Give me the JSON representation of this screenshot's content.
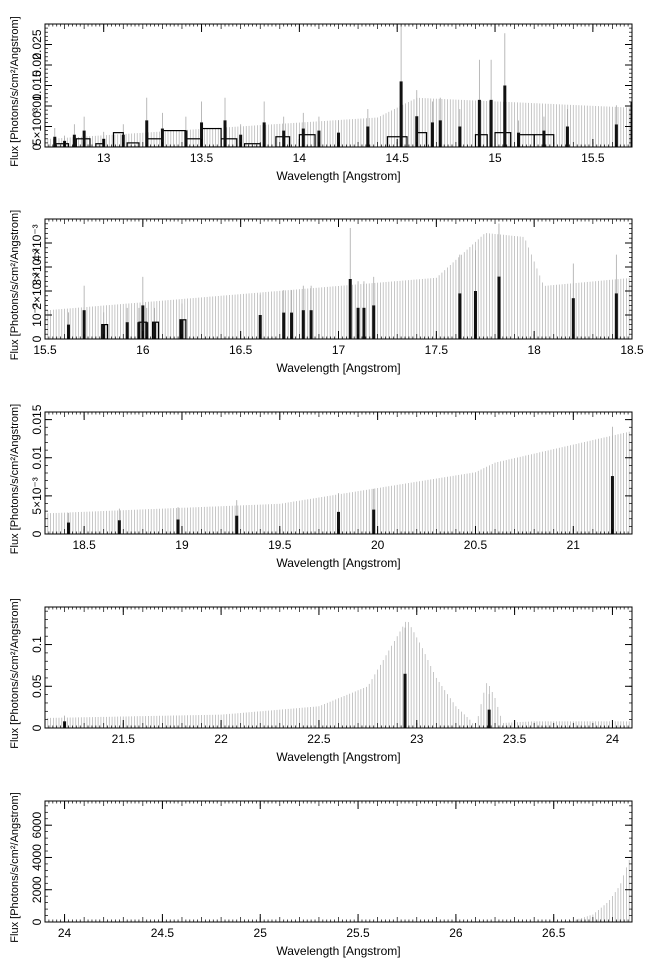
{
  "chart_data": [
    {
      "type": "line",
      "xlabel": "Wavelength [Angstrom]",
      "ylabel": "Flux [Photons/s/cm²/Angstrom]",
      "xlim": [
        12.7,
        15.7
      ],
      "ylim": [
        0,
        0.03
      ],
      "x_ticks": [
        13,
        13.5,
        14,
        14.5,
        15,
        15.5
      ],
      "x_tick_labels": [
        "13",
        "13.5",
        "14",
        "14.5",
        "15",
        "15.5"
      ],
      "y_ticks": [
        0,
        0.005,
        0.01,
        0.015,
        0.02,
        0.025
      ],
      "y_tick_labels": [
        "0",
        "5×10⁻³",
        "0.01",
        "0.015",
        "0.02",
        "0.025"
      ],
      "y_tick_labels_overlap": true,
      "continuum": [
        [
          12.7,
          0.0012
        ],
        [
          14.4,
          0.0045
        ],
        [
          14.6,
          0.0075
        ],
        [
          15.7,
          0.006
        ]
      ],
      "errorbar_scale": 1.6,
      "lines": [
        [
          12.75,
          0.0025
        ],
        [
          12.8,
          0.0015
        ],
        [
          12.85,
          0.003
        ],
        [
          12.9,
          0.004
        ],
        [
          13.0,
          0.002
        ],
        [
          13.1,
          0.003
        ],
        [
          13.22,
          0.0065
        ],
        [
          13.3,
          0.0045
        ],
        [
          13.42,
          0.004
        ],
        [
          13.5,
          0.006
        ],
        [
          13.62,
          0.0065
        ],
        [
          13.7,
          0.003
        ],
        [
          13.82,
          0.006
        ],
        [
          13.92,
          0.004
        ],
        [
          14.02,
          0.0045
        ],
        [
          14.1,
          0.004
        ],
        [
          14.2,
          0.0035
        ],
        [
          14.35,
          0.005
        ],
        [
          14.52,
          0.016
        ],
        [
          14.6,
          0.0075
        ],
        [
          14.68,
          0.006
        ],
        [
          14.72,
          0.0065
        ],
        [
          14.82,
          0.005
        ],
        [
          14.92,
          0.0115
        ],
        [
          14.98,
          0.0115
        ],
        [
          15.05,
          0.015
        ],
        [
          15.12,
          0.0035
        ],
        [
          15.25,
          0.004
        ],
        [
          15.37,
          0.005
        ],
        [
          15.62,
          0.0055
        ],
        [
          15.7,
          0.011
        ]
      ],
      "outline_boxes": [
        [
          12.75,
          12.82,
          0.0008
        ],
        [
          12.86,
          12.93,
          0.002
        ],
        [
          12.96,
          13.0,
          0.0008
        ],
        [
          13.05,
          13.1,
          0.0035
        ],
        [
          13.12,
          13.18,
          0.001
        ],
        [
          13.22,
          13.3,
          0.002
        ],
        [
          13.3,
          13.42,
          0.004
        ],
        [
          13.42,
          13.5,
          0.002
        ],
        [
          13.5,
          13.6,
          0.0045
        ],
        [
          13.6,
          13.68,
          0.002
        ],
        [
          13.72,
          13.8,
          0.0008
        ],
        [
          13.88,
          13.95,
          0.0025
        ],
        [
          14.0,
          14.08,
          0.003
        ],
        [
          14.45,
          14.55,
          0.0025
        ],
        [
          14.6,
          14.65,
          0.0035
        ],
        [
          14.9,
          14.96,
          0.003
        ],
        [
          15.0,
          15.08,
          0.0035
        ],
        [
          15.12,
          15.2,
          0.003
        ],
        [
          15.2,
          15.3,
          0.003
        ]
      ]
    },
    {
      "type": "line",
      "xlabel": "Wavelength [Angstrom]",
      "ylabel": "Flux [Photons/s/cm²/Angstrom]",
      "xlim": [
        15.5,
        18.5
      ],
      "ylim": [
        0,
        0.005
      ],
      "x_ticks": [
        15.5,
        16,
        16.5,
        17,
        17.5,
        18,
        18.5
      ],
      "x_tick_labels": [
        "15.5",
        "16",
        "16.5",
        "17",
        "17.5",
        "18",
        "18.5"
      ],
      "y_ticks": [
        0,
        0.001,
        0.002,
        0.003,
        0.004
      ],
      "y_tick_labels": [
        "0",
        "10⁻³",
        "2×10⁻³",
        "3×10⁻³",
        "4×10⁻³"
      ],
      "y_tick_labels_overlap": true,
      "continuum": [
        [
          15.5,
          0.0007
        ],
        [
          17.5,
          0.0015
        ],
        [
          17.75,
          0.0026
        ],
        [
          17.95,
          0.0025
        ],
        [
          18.05,
          0.0013
        ],
        [
          18.5,
          0.0015
        ]
      ],
      "errorbar_scale": 1.7,
      "lines": [
        [
          15.62,
          0.0006
        ],
        [
          15.7,
          0.0012
        ],
        [
          15.8,
          0.0006
        ],
        [
          15.92,
          0.0007
        ],
        [
          15.98,
          0.0007
        ],
        [
          16.0,
          0.0014
        ],
        [
          16.02,
          0.0007
        ],
        [
          16.06,
          0.0007
        ],
        [
          16.2,
          0.0008
        ],
        [
          16.6,
          0.001
        ],
        [
          16.72,
          0.0011
        ],
        [
          16.76,
          0.0011
        ],
        [
          16.82,
          0.0012
        ],
        [
          16.86,
          0.0012
        ],
        [
          17.06,
          0.0025
        ],
        [
          17.1,
          0.0013
        ],
        [
          17.13,
          0.0013
        ],
        [
          17.18,
          0.0014
        ],
        [
          17.62,
          0.0019
        ],
        [
          17.7,
          0.002
        ],
        [
          17.82,
          0.0026
        ],
        [
          18.2,
          0.0017
        ],
        [
          18.42,
          0.0019
        ]
      ],
      "outline_boxes": [
        [
          15.79,
          15.82,
          0.0006
        ],
        [
          15.98,
          16.02,
          0.0007
        ],
        [
          16.05,
          16.08,
          0.0007
        ],
        [
          16.19,
          16.22,
          0.0008
        ]
      ]
    },
    {
      "type": "line",
      "xlabel": "Wavelength [Angstrom]",
      "ylabel": "Flux [Photons/s/cm²/Angstrom]",
      "xlim": [
        18.3,
        21.3
      ],
      "ylim": [
        0,
        0.016
      ],
      "x_ticks": [
        18.5,
        19,
        19.5,
        20,
        20.5,
        21
      ],
      "x_tick_labels": [
        "18.5",
        "19",
        "19.5",
        "20",
        "20.5",
        "21"
      ],
      "y_ticks": [
        0,
        0.005,
        0.01,
        0.015
      ],
      "y_tick_labels": [
        "0",
        "5×10⁻³",
        "0.01",
        "0.015"
      ],
      "y_tick_labels_overlap": false,
      "continuum": [
        [
          18.3,
          0.0015
        ],
        [
          19.5,
          0.0022
        ],
        [
          20.5,
          0.0045
        ],
        [
          20.6,
          0.0052
        ],
        [
          21.3,
          0.0075
        ]
      ],
      "errorbar_scale": 1.8,
      "lines": [
        [
          18.42,
          0.0015
        ],
        [
          18.68,
          0.0018
        ],
        [
          18.98,
          0.0019
        ],
        [
          19.28,
          0.0024
        ],
        [
          19.8,
          0.0029
        ],
        [
          19.98,
          0.0032
        ],
        [
          21.2,
          0.0076
        ]
      ],
      "outline_boxes": []
    },
    {
      "type": "line",
      "xlabel": "Wavelength [Angstrom]",
      "ylabel": "Flux [Photons/s/cm²/Angstrom]",
      "xlim": [
        21.1,
        24.1
      ],
      "ylim": [
        0,
        0.145
      ],
      "x_ticks": [
        21.5,
        22,
        22.5,
        23,
        23.5,
        24
      ],
      "x_tick_labels": [
        "21.5",
        "22",
        "22.5",
        "23",
        "23.5",
        "24"
      ],
      "y_ticks": [
        0,
        0.05,
        0.1
      ],
      "y_tick_labels": [
        "0",
        "0.05",
        "0.1"
      ],
      "y_tick_labels_overlap": false,
      "continuum": [
        [
          21.1,
          0.006
        ],
        [
          22.0,
          0.008
        ],
        [
          22.5,
          0.013
        ],
        [
          22.75,
          0.025
        ],
        [
          22.9,
          0.055
        ],
        [
          22.95,
          0.065
        ],
        [
          23.02,
          0.05
        ],
        [
          23.1,
          0.03
        ],
        [
          23.2,
          0.013
        ],
        [
          23.28,
          0.004
        ],
        [
          23.3,
          0.0
        ],
        [
          23.34,
          0.02
        ],
        [
          23.36,
          0.028
        ],
        [
          23.4,
          0.018
        ],
        [
          23.44,
          0.003
        ],
        [
          23.6,
          0.004
        ],
        [
          24.1,
          0.004
        ]
      ],
      "errorbar_scale": 2.0,
      "lines": [
        [
          21.2,
          0.008
        ],
        [
          22.94,
          0.065
        ],
        [
          23.37,
          0.022
        ]
      ],
      "outline_boxes": []
    },
    {
      "type": "line",
      "xlabel": "Wavelength [Angstrom]",
      "ylabel": "Flux [Photons/s/cm²/Angstrom]",
      "xlim": [
        23.9,
        26.9
      ],
      "ylim": [
        0,
        7500
      ],
      "x_ticks": [
        24,
        24.5,
        25,
        25.5,
        26,
        26.5
      ],
      "x_tick_labels": [
        "24",
        "24.5",
        "25",
        "25.5",
        "26",
        "26.5"
      ],
      "y_ticks": [
        0,
        2000,
        4000,
        6000
      ],
      "y_tick_labels": [
        "0",
        "2000",
        "4000",
        "6000"
      ],
      "y_tick_labels_overlap": false,
      "continuum": [
        [
          23.9,
          0
        ],
        [
          26.5,
          0
        ],
        [
          26.6,
          80
        ],
        [
          26.7,
          400
        ],
        [
          26.78,
          1100
        ],
        [
          26.84,
          2000
        ],
        [
          26.88,
          3200
        ],
        [
          26.9,
          3700
        ]
      ],
      "errorbar_scale": 1.15,
      "lines": [],
      "outline_boxes": []
    }
  ]
}
